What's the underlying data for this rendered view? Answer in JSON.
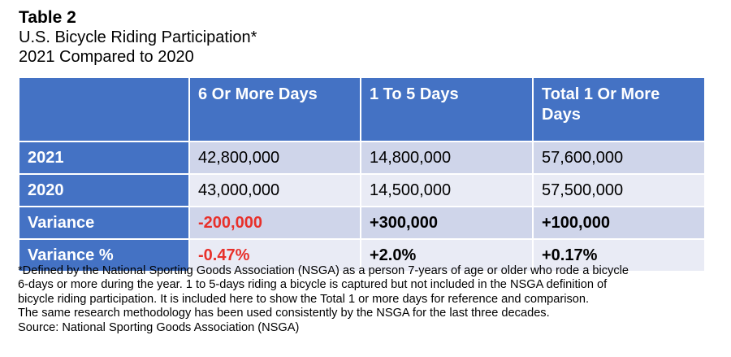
{
  "header": {
    "table_label": "Table 2",
    "title": "U.S. Bicycle Riding Participation*",
    "subtitle": "2021 Compared to 2020"
  },
  "table": {
    "columns": [
      "",
      "6 Or More Days",
      "1 To 5 Days",
      "Total 1 Or More Days"
    ],
    "rows": [
      {
        "label": "2021",
        "values": [
          "42,800,000",
          "14,800,000",
          "57,600,000"
        ]
      },
      {
        "label": "2020",
        "values": [
          "43,000,000",
          "14,500,000",
          "57,500,000"
        ]
      },
      {
        "label": "Variance",
        "values": [
          "-200,000",
          "+300,000",
          "+100,000"
        ]
      },
      {
        "label": "Variance %",
        "values": [
          "-0.47%",
          "+2.0%",
          "+0.17%"
        ]
      }
    ]
  },
  "footnote": {
    "lines": [
      "*Defined by the National Sporting Goods Association (NSGA) as a person 7-years of age or older who rode a bicycle",
      "6-days or more during the year. 1 to 5-days riding a bicycle is captured but not included in the NSGA definition of",
      "bicycle riding participation. It is included here to show the Total 1 or more days for reference and comparison.",
      "The same research methodology has been used consistently by the NSGA for the last three decades.",
      "Source: National Sporting Goods Association (NSGA)"
    ]
  },
  "colors": {
    "header_blue": "#4472c4",
    "row_dark": "#cfd5ea",
    "row_light": "#e9ebf5",
    "negative_red": "#e8302a"
  }
}
